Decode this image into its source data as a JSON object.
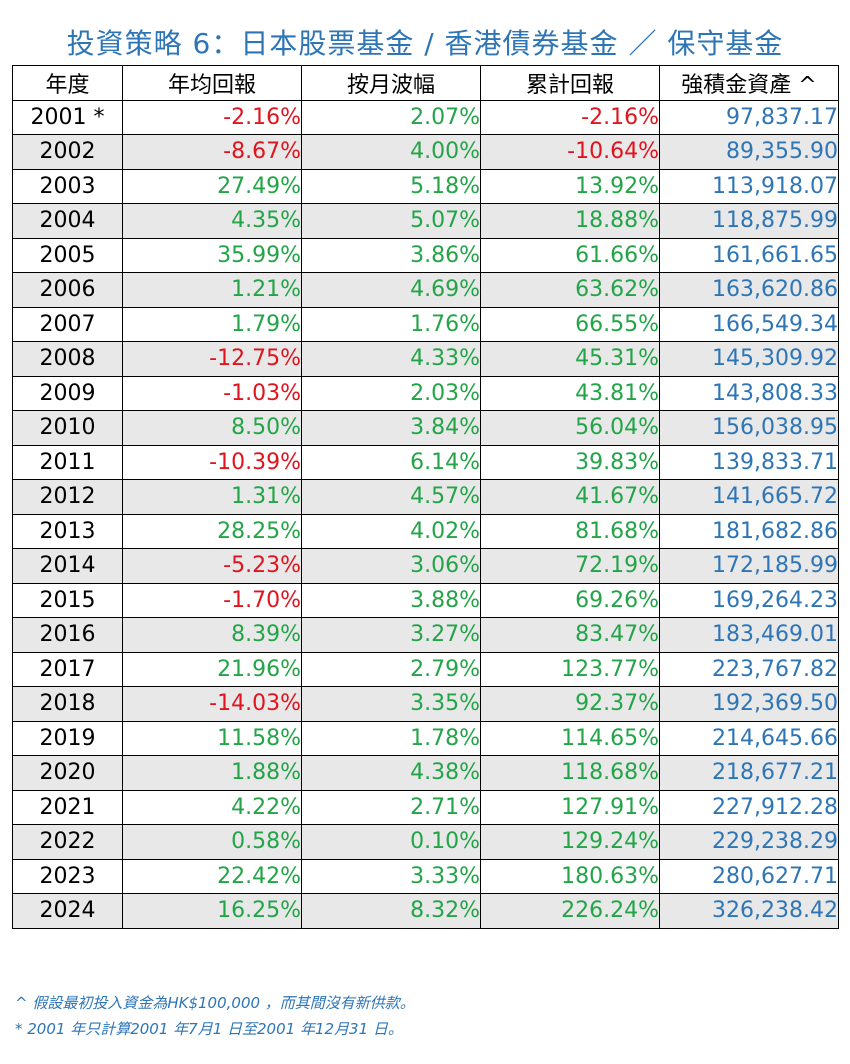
{
  "title": "投資策略 6：日本股票基金 / 香港債券基金 ／ 保守基金",
  "colors": {
    "title": "#2e75b6",
    "positive": "#22a447",
    "negative": "#e0141e",
    "asset": "#2e75b6",
    "stripe": "#e8e8e8"
  },
  "table": {
    "headers": [
      "年度",
      "年均回報",
      "按月波幅",
      "累計回報",
      "強積金資產 ^"
    ],
    "rows": [
      [
        "2001 *",
        "-2.16%",
        "2.07%",
        "-2.16%",
        "97,837.17"
      ],
      [
        "2002",
        "-8.67%",
        "4.00%",
        "-10.64%",
        "89,355.90"
      ],
      [
        "2003",
        "27.49%",
        "5.18%",
        "13.92%",
        "113,918.07"
      ],
      [
        "2004",
        "4.35%",
        "5.07%",
        "18.88%",
        "118,875.99"
      ],
      [
        "2005",
        "35.99%",
        "3.86%",
        "61.66%",
        "161,661.65"
      ],
      [
        "2006",
        "1.21%",
        "4.69%",
        "63.62%",
        "163,620.86"
      ],
      [
        "2007",
        "1.79%",
        "1.76%",
        "66.55%",
        "166,549.34"
      ],
      [
        "2008",
        "-12.75%",
        "4.33%",
        "45.31%",
        "145,309.92"
      ],
      [
        "2009",
        "-1.03%",
        "2.03%",
        "43.81%",
        "143,808.33"
      ],
      [
        "2010",
        "8.50%",
        "3.84%",
        "56.04%",
        "156,038.95"
      ],
      [
        "2011",
        "-10.39%",
        "6.14%",
        "39.83%",
        "139,833.71"
      ],
      [
        "2012",
        "1.31%",
        "4.57%",
        "41.67%",
        "141,665.72"
      ],
      [
        "2013",
        "28.25%",
        "4.02%",
        "81.68%",
        "181,682.86"
      ],
      [
        "2014",
        "-5.23%",
        "3.06%",
        "72.19%",
        "172,185.99"
      ],
      [
        "2015",
        "-1.70%",
        "3.88%",
        "69.26%",
        "169,264.23"
      ],
      [
        "2016",
        "8.39%",
        "3.27%",
        "83.47%",
        "183,469.01"
      ],
      [
        "2017",
        "21.96%",
        "2.79%",
        "123.77%",
        "223,767.82"
      ],
      [
        "2018",
        "-14.03%",
        "3.35%",
        "92.37%",
        "192,369.50"
      ],
      [
        "2019",
        "11.58%",
        "1.78%",
        "114.65%",
        "214,645.66"
      ],
      [
        "2020",
        "1.88%",
        "4.38%",
        "118.68%",
        "218,677.21"
      ],
      [
        "2021",
        "4.22%",
        "2.71%",
        "127.91%",
        "227,912.28"
      ],
      [
        "2022",
        "0.58%",
        "0.10%",
        "129.24%",
        "229,238.29"
      ],
      [
        "2023",
        "22.42%",
        "3.33%",
        "180.63%",
        "280,627.71"
      ],
      [
        "2024",
        "16.25%",
        "8.32%",
        "226.24%",
        "326,238.42"
      ]
    ]
  },
  "notes": [
    "^ 假設最初投入資金為HK$100,000 ，而其間沒有新供款。",
    "* 2001 年只計算2001 年7月1 日至2001 年12月31 日。"
  ]
}
